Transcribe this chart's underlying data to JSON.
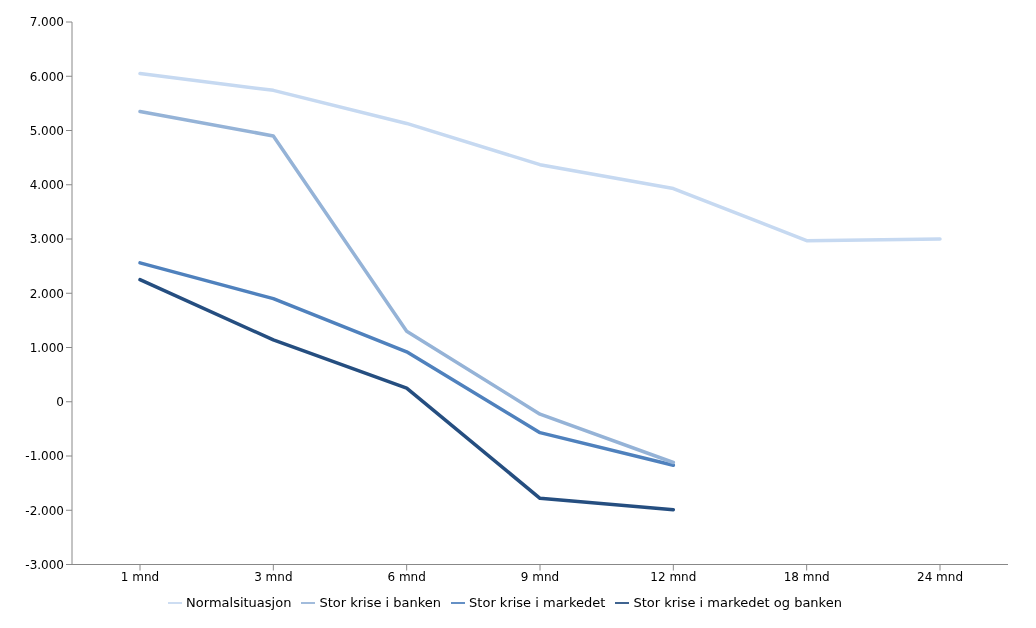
{
  "chart_data": {
    "type": "line",
    "categories": [
      "1 mnd",
      "3 mnd",
      "6 mnd",
      "9 mnd",
      "12 mnd",
      "18 mnd",
      "24 mnd"
    ],
    "series": [
      {
        "name": "Stor krise i markedet",
        "color": "#4f81bd",
        "values": [
          2560,
          1900,
          920,
          -570,
          -1170,
          null,
          null
        ]
      },
      {
        "name": "Stor krise i markedet og banken",
        "color": "#254e80",
        "values": [
          2250,
          1140,
          250,
          -1780,
          -1990,
          null,
          null
        ]
      },
      {
        "name": "Stor krise i banken",
        "color": "#95b3d7",
        "values": [
          5350,
          4900,
          1300,
          -230,
          -1120,
          null,
          null
        ]
      },
      {
        "name": "Normalsituasjon",
        "color": "#c6d9f1",
        "values": [
          6050,
          5740,
          5130,
          4370,
          3930,
          2970,
          3000
        ]
      }
    ],
    "ylim": [
      -3000,
      7000
    ],
    "yticks": [
      {
        "value": -3000,
        "label": "-3.000"
      },
      {
        "value": -2000,
        "label": "-2.000"
      },
      {
        "value": -1000,
        "label": "-1.000"
      },
      {
        "value": 0,
        "label": "0"
      },
      {
        "value": 1000,
        "label": "1.000"
      },
      {
        "value": 2000,
        "label": "2.000"
      },
      {
        "value": 3000,
        "label": "3.000"
      },
      {
        "value": 4000,
        "label": "4.000"
      },
      {
        "value": 5000,
        "label": "5.000"
      },
      {
        "value": 6000,
        "label": "6.000"
      },
      {
        "value": 7000,
        "label": "7.000"
      }
    ],
    "grid": false,
    "legend": "bottom",
    "marker": "none",
    "line_style": "solid"
  }
}
